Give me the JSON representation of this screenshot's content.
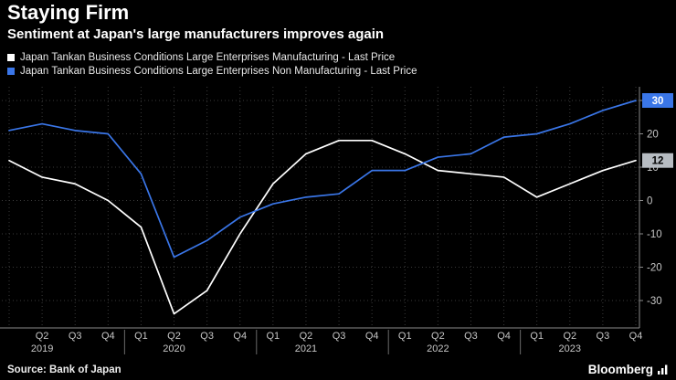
{
  "header": {
    "title": "Staying Firm",
    "subtitle": "Sentiment at Japan's large manufacturers improves again"
  },
  "legend": [
    {
      "label": "Japan Tankan Business Conditions Large Enterprises Manufacturing - Last Price",
      "color": "#ffffff"
    },
    {
      "label": "Japan Tankan Business Conditions Large Enterprises Non Manufacturing - Last Price",
      "color": "#3a76e8"
    }
  ],
  "chart_data": {
    "type": "line",
    "x_labels": [
      "",
      "Q2",
      "Q3",
      "Q4",
      "Q1",
      "Q2",
      "Q3",
      "Q4",
      "Q1",
      "Q2",
      "Q3",
      "Q4",
      "Q1",
      "Q2",
      "Q3",
      "Q4",
      "Q1",
      "Q2",
      "Q3",
      "Q4"
    ],
    "year_labels": [
      {
        "label": "2019",
        "index": 1
      },
      {
        "label": "2020",
        "index": 5
      },
      {
        "label": "2021",
        "index": 9
      },
      {
        "label": "2022",
        "index": 13
      },
      {
        "label": "2023",
        "index": 17
      }
    ],
    "series": [
      {
        "name": "Japan Tankan Business Conditions Large Enterprises Manufacturing - Last Price",
        "color": "#ffffff",
        "values": [
          12,
          7,
          5,
          0,
          -8,
          -34,
          -27,
          -10,
          5,
          14,
          18,
          18,
          14,
          9,
          8,
          7,
          1,
          5,
          9,
          12
        ]
      },
      {
        "name": "Japan Tankan Business Conditions Large Enterprises Non Manufacturing - Last Price",
        "color": "#3a76e8",
        "values": [
          21,
          23,
          21,
          20,
          8,
          -17,
          -12,
          -5,
          -1,
          1,
          2,
          9,
          9,
          13,
          14,
          19,
          20,
          23,
          27,
          30
        ]
      }
    ],
    "yticks": [
      30,
      20,
      10,
      0,
      -10,
      -20,
      -30
    ],
    "ylim": [
      -38,
      34
    ],
    "grid": "dotted",
    "legend_position": "top-left",
    "badges": [
      {
        "value": 30,
        "label": "30",
        "bg": "#3a76e8",
        "fg": "#ffffff"
      },
      {
        "value": 12,
        "label": "12",
        "bg": "#b7bcc2",
        "fg": "#000000"
      }
    ]
  },
  "footer": {
    "source": "Source: Bank of Japan",
    "brand": "Bloomberg"
  }
}
